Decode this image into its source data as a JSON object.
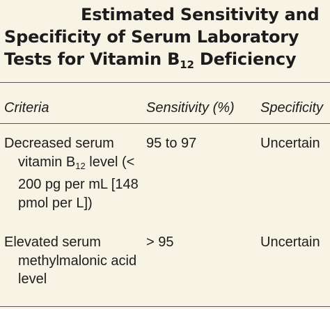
{
  "title": {
    "line1": "Estimated Sensitivity and",
    "line2": "Specificity of Serum Laboratory",
    "line3_pre": "Tests for Vitamin B",
    "line3_sub": "12",
    "line3_post": " Deficiency"
  },
  "table": {
    "headers": {
      "criteria": "Criteria",
      "sensitivity": "Sensitivity (%)",
      "specificity": "Specificity"
    },
    "rows": [
      {
        "criteria_pre": "Decreased serum vitamin B",
        "criteria_sub": "12",
        "criteria_post": " level (< 200 pg per mL [148 pmol per L])",
        "sensitivity": "95 to 97",
        "specificity": "Uncertain"
      },
      {
        "criteria": "Elevated serum methylmalonic acid level",
        "sensitivity": "> 95",
        "specificity": "Uncertain"
      }
    ]
  }
}
